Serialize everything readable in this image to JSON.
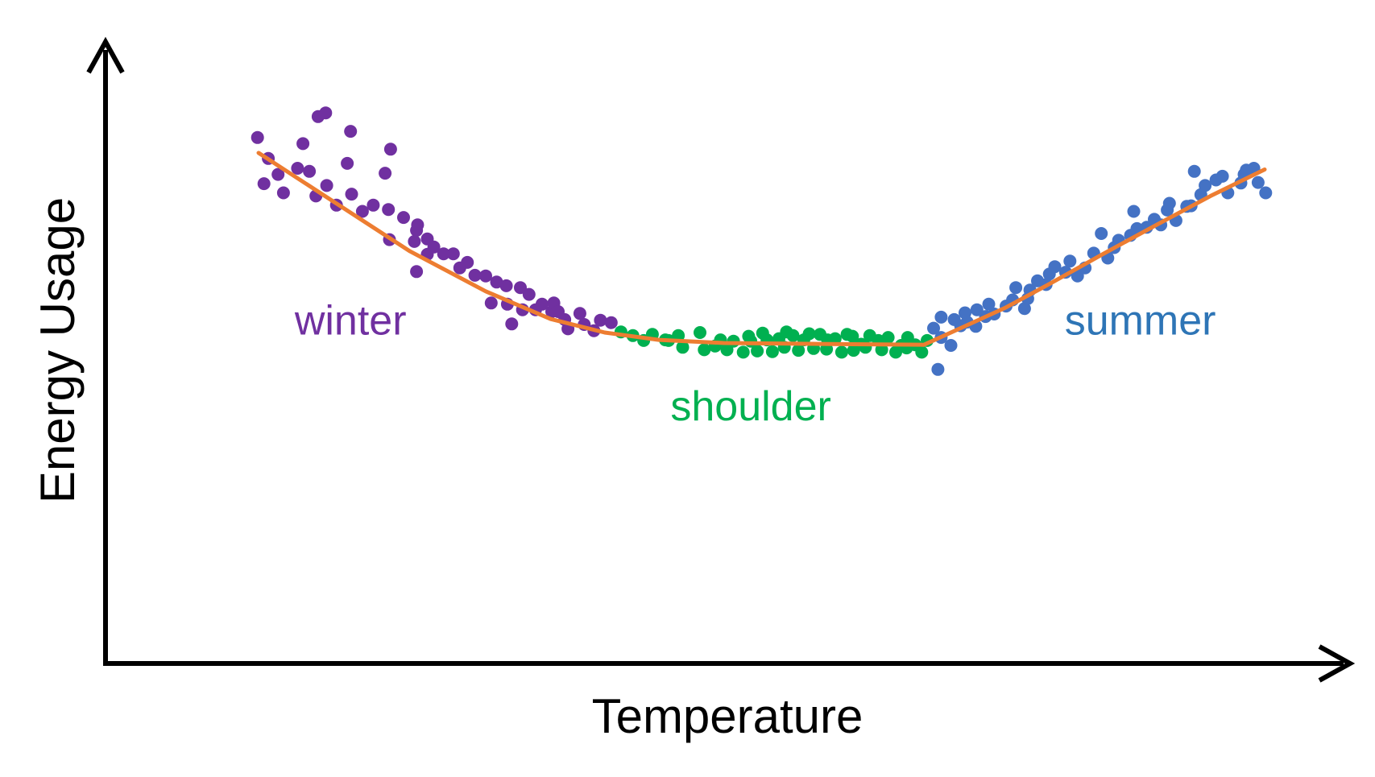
{
  "colors": {
    "winter": "#7030A0",
    "shoulder": "#00B050",
    "summer": "#4472C4",
    "summer_label": "#2E75B6",
    "trend": "#ED7D31",
    "axes": "#000000"
  },
  "chart_data": {
    "type": "scatter",
    "title": "",
    "xlabel": "Temperature",
    "ylabel": "Energy Usage",
    "xlim": [
      0,
      100
    ],
    "ylim": [
      0,
      100
    ],
    "ticks": "none",
    "grid": false,
    "legend": "none",
    "annotations": [
      {
        "text": "winter",
        "series": "winter",
        "x": 15.5,
        "y": 53.5
      },
      {
        "text": "shoulder",
        "series": "shoulder",
        "x": 52.5,
        "y": 39.5
      },
      {
        "text": "summer",
        "series": "summer",
        "x": 88.5,
        "y": 53.5
      }
    ],
    "series": [
      {
        "name": "winter",
        "color": "#7030A0",
        "points": [
          [
            7.9,
            82.1
          ],
          [
            6.9,
            85.5
          ],
          [
            7.5,
            78.0
          ],
          [
            8.8,
            79.5
          ],
          [
            9.3,
            76.5
          ],
          [
            10.6,
            80.5
          ],
          [
            11.7,
            80.0
          ],
          [
            11.1,
            84.5
          ],
          [
            12.3,
            76.0
          ],
          [
            13.3,
            77.7
          ],
          [
            12.5,
            88.9
          ],
          [
            13.2,
            89.5
          ],
          [
            15.2,
            81.3
          ],
          [
            15.5,
            86.5
          ],
          [
            14.2,
            74.5
          ],
          [
            15.6,
            76.3
          ],
          [
            16.6,
            73.5
          ],
          [
            17.6,
            74.5
          ],
          [
            19.0,
            73.8
          ],
          [
            18.7,
            79.7
          ],
          [
            19.2,
            83.6
          ],
          [
            20.4,
            72.5
          ],
          [
            21.6,
            70.4
          ],
          [
            22.6,
            69.0
          ],
          [
            21.4,
            68.6
          ],
          [
            22.6,
            66.5
          ],
          [
            23.2,
            67.7
          ],
          [
            24.1,
            66.6
          ],
          [
            25.0,
            66.6
          ],
          [
            25.6,
            64.3
          ],
          [
            26.3,
            65.2
          ],
          [
            27.0,
            63.1
          ],
          [
            28.0,
            63.0
          ],
          [
            29.0,
            62.0
          ],
          [
            28.5,
            58.6
          ],
          [
            29.9,
            61.4
          ],
          [
            30.0,
            58.4
          ],
          [
            31.2,
            61.1
          ],
          [
            32.0,
            60.0
          ],
          [
            31.4,
            57.5
          ],
          [
            30.4,
            55.2
          ],
          [
            32.6,
            57.5
          ],
          [
            33.2,
            58.4
          ],
          [
            34.1,
            57.2
          ],
          [
            34.3,
            58.6
          ],
          [
            34.7,
            57.2
          ],
          [
            35.3,
            55.9
          ],
          [
            36.7,
            56.9
          ],
          [
            35.6,
            54.4
          ],
          [
            37.1,
            55.1
          ],
          [
            38.0,
            54.1
          ],
          [
            38.6,
            55.8
          ],
          [
            39.6,
            55.4
          ],
          [
            21.6,
            63.7
          ],
          [
            19.1,
            68.9
          ],
          [
            21.7,
            71.3
          ]
        ]
      },
      {
        "name": "shoulder",
        "color": "#00B050",
        "points": [
          [
            40.5,
            53.9
          ],
          [
            41.6,
            53.3
          ],
          [
            42.6,
            52.5
          ],
          [
            43.4,
            53.5
          ],
          [
            44.6,
            52.6
          ],
          [
            45.8,
            53.3
          ],
          [
            46.2,
            51.4
          ],
          [
            47.8,
            53.8
          ],
          [
            48.2,
            51.0
          ],
          [
            49.7,
            52.6
          ],
          [
            50.3,
            51.0
          ],
          [
            50.9,
            52.4
          ],
          [
            51.8,
            50.6
          ],
          [
            52.3,
            53.2
          ],
          [
            53.1,
            50.8
          ],
          [
            53.6,
            53.7
          ],
          [
            54.5,
            50.7
          ],
          [
            55.1,
            52.8
          ],
          [
            55.6,
            51.4
          ],
          [
            56.4,
            53.3
          ],
          [
            56.9,
            50.9
          ],
          [
            57.4,
            52.6
          ],
          [
            58.3,
            51.2
          ],
          [
            58.9,
            53.5
          ],
          [
            59.5,
            51.1
          ],
          [
            60.3,
            52.8
          ],
          [
            60.9,
            50.6
          ],
          [
            61.4,
            53.5
          ],
          [
            62.0,
            50.9
          ],
          [
            62.7,
            51.9
          ],
          [
            63.1,
            51.4
          ],
          [
            63.5,
            53.3
          ],
          [
            64.6,
            51.0
          ],
          [
            65.2,
            53.0
          ],
          [
            65.9,
            50.6
          ],
          [
            66.4,
            51.7
          ],
          [
            67.0,
            53.0
          ],
          [
            67.7,
            51.8
          ],
          [
            68.3,
            50.6
          ],
          [
            68.8,
            52.5
          ],
          [
            44.9,
            52.5
          ],
          [
            55.8,
            53.9
          ],
          [
            49.2,
            51.6
          ],
          [
            54.0,
            52.6
          ],
          [
            59.6,
            52.6
          ],
          [
            61.9,
            53.2
          ],
          [
            64.3,
            52.5
          ],
          [
            66.9,
            51.3
          ],
          [
            52.5,
            52.4
          ],
          [
            57.9,
            53.6
          ]
        ]
      },
      {
        "name": "summer",
        "color": "#4472C4",
        "points": [
          [
            69.4,
            54.5
          ],
          [
            70.1,
            53.0
          ],
          [
            70.1,
            56.3
          ],
          [
            71.0,
            51.7
          ],
          [
            71.3,
            55.9
          ],
          [
            71.9,
            54.9
          ],
          [
            72.3,
            57.0
          ],
          [
            72.5,
            55.5
          ],
          [
            73.4,
            57.5
          ],
          [
            74.2,
            56.4
          ],
          [
            74.5,
            58.4
          ],
          [
            75.0,
            56.8
          ],
          [
            76.1,
            58.1
          ],
          [
            76.7,
            59.1
          ],
          [
            77.0,
            61.1
          ],
          [
            78.1,
            59.3
          ],
          [
            78.3,
            60.7
          ],
          [
            79.0,
            62.2
          ],
          [
            79.8,
            61.6
          ],
          [
            80.1,
            63.3
          ],
          [
            80.6,
            64.5
          ],
          [
            81.6,
            63.6
          ],
          [
            82.0,
            65.4
          ],
          [
            82.7,
            63.0
          ],
          [
            83.4,
            64.3
          ],
          [
            84.2,
            66.7
          ],
          [
            85.5,
            65.9
          ],
          [
            86.1,
            67.6
          ],
          [
            86.5,
            68.8
          ],
          [
            87.6,
            69.6
          ],
          [
            88.2,
            70.7
          ],
          [
            89.1,
            70.9
          ],
          [
            89.8,
            72.2
          ],
          [
            90.4,
            71.3
          ],
          [
            91.0,
            73.7
          ],
          [
            91.8,
            72.0
          ],
          [
            92.8,
            74.3
          ],
          [
            93.2,
            74.4
          ],
          [
            94.1,
            76.2
          ],
          [
            94.5,
            77.7
          ],
          [
            95.5,
            78.6
          ],
          [
            96.1,
            79.2
          ],
          [
            96.6,
            76.5
          ],
          [
            97.8,
            78.1
          ],
          [
            98.3,
            80.2
          ],
          [
            99.0,
            80.5
          ],
          [
            99.4,
            78.2
          ],
          [
            100.1,
            76.5
          ],
          [
            93.5,
            80.0
          ],
          [
            87.9,
            73.5
          ],
          [
            73.3,
            54.8
          ],
          [
            69.8,
            47.8
          ],
          [
            84.9,
            69.9
          ],
          [
            77.8,
            57.7
          ],
          [
            91.2,
            74.8
          ],
          [
            98.1,
            79.5
          ]
        ]
      }
    ],
    "trend_line": {
      "name": "fit",
      "color": "#ED7D31",
      "points": [
        [
          7.0,
          83.0
        ],
        [
          14.0,
          75.0
        ],
        [
          21.0,
          67.0
        ],
        [
          28.0,
          60.5
        ],
        [
          34.0,
          56.0
        ],
        [
          39.0,
          53.8
        ],
        [
          44.0,
          52.6
        ],
        [
          50.0,
          52.1
        ],
        [
          56.0,
          52.0
        ],
        [
          62.0,
          51.9
        ],
        [
          68.5,
          51.8
        ],
        [
          72.0,
          54.6
        ],
        [
          76.0,
          57.8
        ],
        [
          80.0,
          61.6
        ],
        [
          85.0,
          66.5
        ],
        [
          90.0,
          71.3
        ],
        [
          95.0,
          76.0
        ],
        [
          100.0,
          80.3
        ]
      ]
    }
  }
}
